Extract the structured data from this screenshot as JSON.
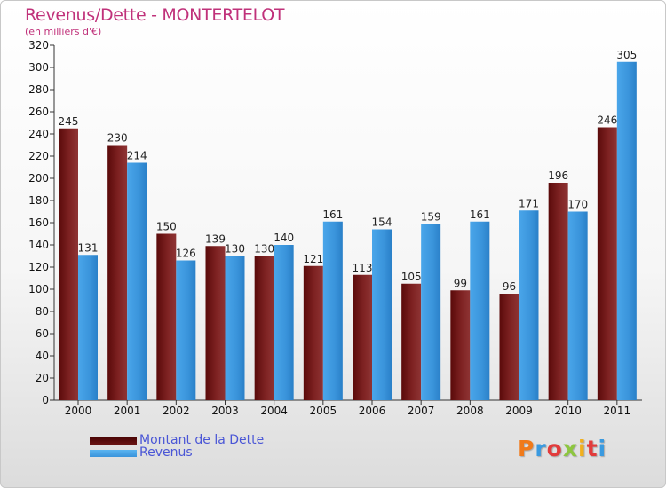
{
  "title": "Revenus/Dette - MONTERTELOT",
  "subtitle": "(en milliers d'€)",
  "legend": {
    "dette_label": "Montant de la Dette",
    "revenus_label": "Revenus"
  },
  "logo_text": "Proxiti",
  "colors": {
    "dette": "#7a1c1c",
    "revenus": "#3a9ae0",
    "title": "#c0317a",
    "legend_text": "#4a56d6"
  },
  "chart_data": {
    "type": "bar",
    "title": "Revenus/Dette - MONTERTELOT",
    "subtitle": "(en milliers d'€)",
    "categories": [
      "2000",
      "2001",
      "2002",
      "2003",
      "2004",
      "2005",
      "2006",
      "2007",
      "2008",
      "2009",
      "2010",
      "2011"
    ],
    "series": [
      {
        "name": "Montant de la Dette",
        "values": [
          245,
          230,
          150,
          139,
          130,
          121,
          113,
          105,
          99,
          96,
          196,
          246
        ]
      },
      {
        "name": "Revenus",
        "values": [
          131,
          214,
          126,
          130,
          140,
          161,
          154,
          159,
          161,
          171,
          170,
          305
        ]
      }
    ],
    "ylim": [
      0,
      320
    ],
    "yticks": [
      0,
      20,
      40,
      60,
      80,
      100,
      120,
      140,
      160,
      180,
      200,
      220,
      240,
      260,
      280,
      300,
      320
    ],
    "grid": false,
    "legend_position": "bottom-left"
  }
}
